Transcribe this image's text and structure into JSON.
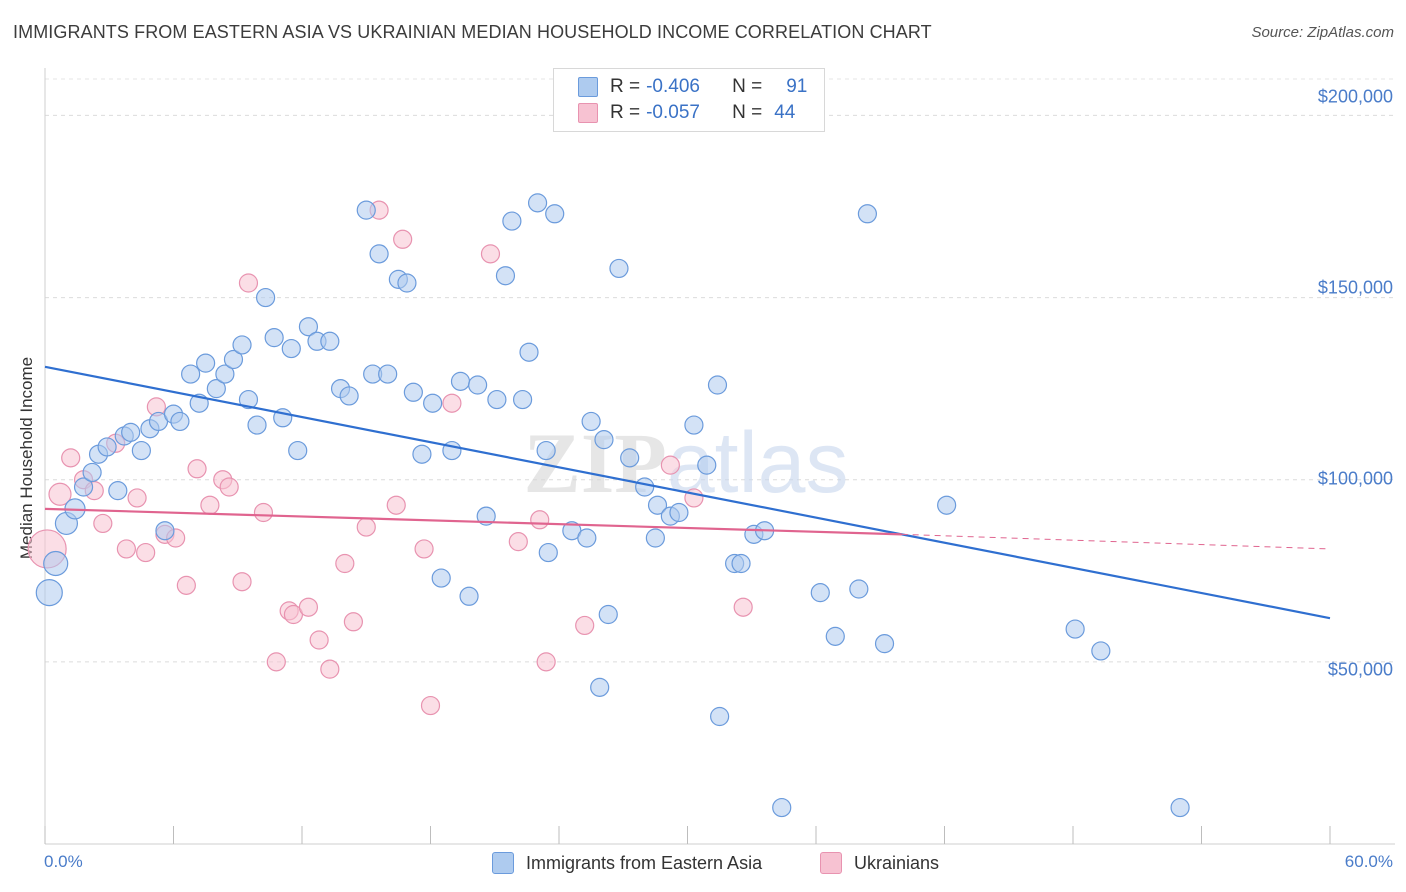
{
  "header": {
    "title": "IMMIGRANTS FROM EASTERN ASIA VS UKRAINIAN MEDIAN HOUSEHOLD INCOME CORRELATION CHART",
    "source": "Source: ZipAtlas.com"
  },
  "legend_top": {
    "rows": [
      {
        "r_label": "R =",
        "r_value": "-0.406",
        "n_label": "N =",
        "n_value": "91"
      },
      {
        "r_label": "R =",
        "r_value": "-0.057",
        "n_label": "N =",
        "n_value": "44"
      }
    ]
  },
  "legend_bottom": {
    "items": [
      {
        "label": "Immigrants from Eastern Asia"
      },
      {
        "label": "Ukrainians"
      }
    ]
  },
  "axes": {
    "ylabel": "Median Household Income",
    "x_min_label": "0.0%",
    "x_max_label": "60.0%",
    "y_ticks": [
      "$50,000",
      "$100,000",
      "$150,000",
      "$200,000"
    ]
  },
  "watermark": {
    "part1": "ZIP",
    "part2": "atlas"
  },
  "colors": {
    "blue_fill": "#aecbef",
    "blue_stroke": "#6b9bdc",
    "blue_line": "#2f6fd0",
    "pink_fill": "#f7c2d2",
    "pink_stroke": "#e893b0",
    "pink_line": "#e0648f",
    "axis_text": "#4a7cc9"
  },
  "chart_data": {
    "type": "scatter",
    "title": "IMMIGRANTS FROM EASTERN ASIA VS UKRAINIAN MEDIAN HOUSEHOLD INCOME CORRELATION CHART",
    "xlabel": "",
    "ylabel": "Median Household Income",
    "xlim": [
      0,
      60
    ],
    "ylim": [
      0,
      210000
    ],
    "x_unit": "%",
    "grid": "horizontal dashed",
    "legend_placement": "top-center and bottom",
    "series": [
      {
        "name": "Immigrants from Eastern Asia",
        "color": "#6b9bdc",
        "r": -0.406,
        "n": 91,
        "trend": {
          "x": [
            0,
            60
          ],
          "y": [
            131000,
            62000
          ]
        },
        "points": [
          [
            0.2,
            69000
          ],
          [
            0.5,
            77000
          ],
          [
            1.0,
            88000
          ],
          [
            1.4,
            92000
          ],
          [
            1.8,
            98000
          ],
          [
            2.2,
            102000
          ],
          [
            2.5,
            107000
          ],
          [
            2.9,
            109000
          ],
          [
            3.4,
            97000
          ],
          [
            3.7,
            112000
          ],
          [
            4.0,
            113000
          ],
          [
            4.5,
            108000
          ],
          [
            4.9,
            114000
          ],
          [
            5.3,
            116000
          ],
          [
            5.6,
            86000
          ],
          [
            6.0,
            118000
          ],
          [
            6.3,
            116000
          ],
          [
            6.8,
            129000
          ],
          [
            7.2,
            121000
          ],
          [
            7.5,
            132000
          ],
          [
            8.0,
            125000
          ],
          [
            8.4,
            129000
          ],
          [
            8.8,
            133000
          ],
          [
            9.2,
            137000
          ],
          [
            9.5,
            122000
          ],
          [
            9.9,
            115000
          ],
          [
            10.3,
            150000
          ],
          [
            10.7,
            139000
          ],
          [
            11.1,
            117000
          ],
          [
            11.5,
            136000
          ],
          [
            11.8,
            108000
          ],
          [
            12.3,
            142000
          ],
          [
            12.7,
            138000
          ],
          [
            13.3,
            138000
          ],
          [
            13.8,
            125000
          ],
          [
            14.2,
            123000
          ],
          [
            15.0,
            174000
          ],
          [
            15.3,
            129000
          ],
          [
            15.6,
            162000
          ],
          [
            16.0,
            129000
          ],
          [
            16.5,
            155000
          ],
          [
            16.9,
            154000
          ],
          [
            17.2,
            124000
          ],
          [
            17.6,
            107000
          ],
          [
            18.1,
            121000
          ],
          [
            18.5,
            73000
          ],
          [
            19.0,
            108000
          ],
          [
            19.4,
            127000
          ],
          [
            19.8,
            68000
          ],
          [
            20.2,
            126000
          ],
          [
            20.6,
            90000
          ],
          [
            21.1,
            122000
          ],
          [
            21.5,
            156000
          ],
          [
            21.8,
            171000
          ],
          [
            22.3,
            122000
          ],
          [
            22.6,
            135000
          ],
          [
            23.0,
            176000
          ],
          [
            23.4,
            108000
          ],
          [
            23.8,
            173000
          ],
          [
            23.5,
            80000
          ],
          [
            24.6,
            86000
          ],
          [
            25.3,
            84000
          ],
          [
            25.5,
            116000
          ],
          [
            26.1,
            111000
          ],
          [
            26.3,
            63000
          ],
          [
            25.9,
            43000
          ],
          [
            26.8,
            158000
          ],
          [
            27.3,
            106000
          ],
          [
            28.0,
            98000
          ],
          [
            28.5,
            84000
          ],
          [
            28.6,
            93000
          ],
          [
            29.2,
            90000
          ],
          [
            29.6,
            91000
          ],
          [
            30.3,
            115000
          ],
          [
            31.4,
            126000
          ],
          [
            30.9,
            104000
          ],
          [
            31.5,
            35000
          ],
          [
            32.2,
            77000
          ],
          [
            32.5,
            77000
          ],
          [
            33.1,
            85000
          ],
          [
            33.6,
            86000
          ],
          [
            34.4,
            10000
          ],
          [
            36.2,
            69000
          ],
          [
            36.9,
            57000
          ],
          [
            38.0,
            70000
          ],
          [
            38.4,
            173000
          ],
          [
            39.2,
            55000
          ],
          [
            42.1,
            93000
          ],
          [
            48.1,
            59000
          ],
          [
            49.3,
            53000
          ],
          [
            53.0,
            10000
          ]
        ]
      },
      {
        "name": "Ukrainians",
        "color": "#e893b0",
        "r": -0.057,
        "n": 44,
        "trend": {
          "x": [
            0,
            40
          ],
          "y": [
            92000,
            85000
          ]
        },
        "trend_dashed": {
          "x": [
            40,
            60
          ],
          "y": [
            85000,
            81000
          ]
        },
        "points": [
          [
            0.1,
            81000
          ],
          [
            0.7,
            96000
          ],
          [
            1.2,
            106000
          ],
          [
            1.8,
            100000
          ],
          [
            2.3,
            97000
          ],
          [
            2.7,
            88000
          ],
          [
            3.3,
            110000
          ],
          [
            3.8,
            81000
          ],
          [
            4.3,
            95000
          ],
          [
            4.7,
            80000
          ],
          [
            5.2,
            120000
          ],
          [
            5.6,
            85000
          ],
          [
            6.1,
            84000
          ],
          [
            6.6,
            71000
          ],
          [
            7.1,
            103000
          ],
          [
            7.7,
            93000
          ],
          [
            8.3,
            100000
          ],
          [
            8.6,
            98000
          ],
          [
            9.2,
            72000
          ],
          [
            9.5,
            154000
          ],
          [
            10.2,
            91000
          ],
          [
            10.8,
            50000
          ],
          [
            11.4,
            64000
          ],
          [
            11.6,
            63000
          ],
          [
            12.3,
            65000
          ],
          [
            12.8,
            56000
          ],
          [
            13.3,
            48000
          ],
          [
            14.0,
            77000
          ],
          [
            14.4,
            61000
          ],
          [
            15.0,
            87000
          ],
          [
            15.6,
            174000
          ],
          [
            16.4,
            93000
          ],
          [
            16.7,
            166000
          ],
          [
            17.7,
            81000
          ],
          [
            18.0,
            38000
          ],
          [
            19.0,
            121000
          ],
          [
            20.8,
            162000
          ],
          [
            22.1,
            83000
          ],
          [
            23.1,
            89000
          ],
          [
            23.4,
            50000
          ],
          [
            25.2,
            60000
          ],
          [
            29.2,
            104000
          ],
          [
            30.3,
            95000
          ],
          [
            32.6,
            65000
          ]
        ]
      }
    ]
  }
}
